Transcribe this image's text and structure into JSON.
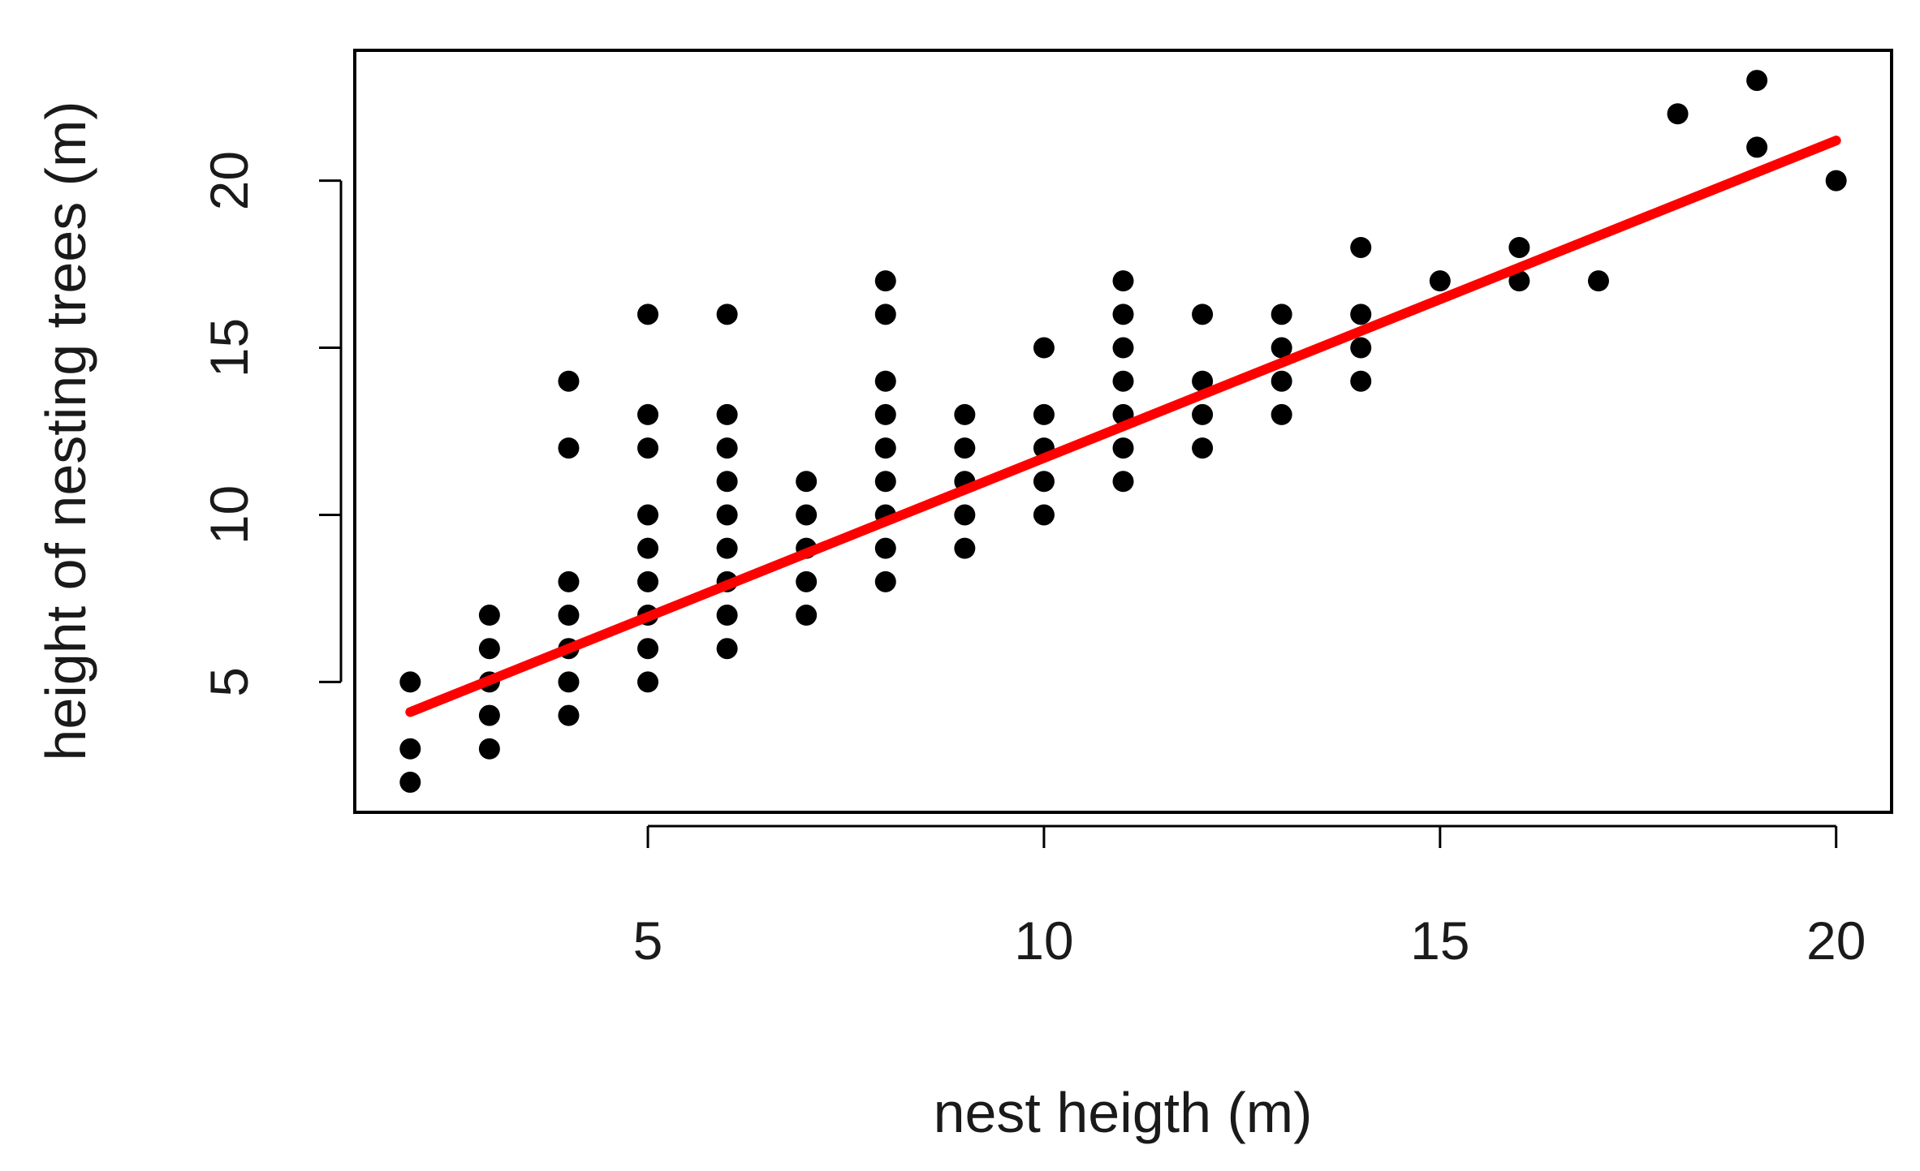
{
  "chart_data": {
    "type": "scatter",
    "title": "",
    "xlabel": "nest heigth (m)",
    "ylabel": "height of nesting trees (m)",
    "xlim": [
      1.3,
      20.7
    ],
    "ylim": [
      1.1,
      23.9
    ],
    "x_ticks": [
      5,
      10,
      15,
      20
    ],
    "y_ticks": [
      5,
      10,
      15,
      20
    ],
    "x_tick_labels": [
      "5",
      "10",
      "15",
      "20"
    ],
    "y_tick_labels": [
      "5",
      "10",
      "15",
      "20"
    ],
    "grid": false,
    "points": [
      [
        2,
        2
      ],
      [
        2,
        3
      ],
      [
        2,
        5
      ],
      [
        3,
        3
      ],
      [
        3,
        4
      ],
      [
        3,
        5
      ],
      [
        3,
        6
      ],
      [
        3,
        7
      ],
      [
        4,
        4
      ],
      [
        4,
        5
      ],
      [
        4,
        6
      ],
      [
        4,
        7
      ],
      [
        4,
        8
      ],
      [
        4,
        12
      ],
      [
        4,
        14
      ],
      [
        5,
        5
      ],
      [
        5,
        6
      ],
      [
        5,
        7
      ],
      [
        5,
        8
      ],
      [
        5,
        9
      ],
      [
        5,
        10
      ],
      [
        5,
        12
      ],
      [
        5,
        13
      ],
      [
        5,
        16
      ],
      [
        6,
        6
      ],
      [
        6,
        7
      ],
      [
        6,
        8
      ],
      [
        6,
        9
      ],
      [
        6,
        10
      ],
      [
        6,
        11
      ],
      [
        6,
        12
      ],
      [
        6,
        13
      ],
      [
        6,
        16
      ],
      [
        7,
        7
      ],
      [
        7,
        8
      ],
      [
        7,
        9
      ],
      [
        7,
        10
      ],
      [
        7,
        11
      ],
      [
        8,
        8
      ],
      [
        8,
        9
      ],
      [
        8,
        10
      ],
      [
        8,
        11
      ],
      [
        8,
        12
      ],
      [
        8,
        13
      ],
      [
        8,
        14
      ],
      [
        8,
        16
      ],
      [
        8,
        17
      ],
      [
        9,
        9
      ],
      [
        9,
        10
      ],
      [
        9,
        11
      ],
      [
        9,
        12
      ],
      [
        9,
        13
      ],
      [
        10,
        10
      ],
      [
        10,
        11
      ],
      [
        10,
        12
      ],
      [
        10,
        13
      ],
      [
        10,
        15
      ],
      [
        11,
        11
      ],
      [
        11,
        12
      ],
      [
        11,
        13
      ],
      [
        11,
        14
      ],
      [
        11,
        15
      ],
      [
        11,
        16
      ],
      [
        11,
        17
      ],
      [
        12,
        12
      ],
      [
        12,
        13
      ],
      [
        12,
        14
      ],
      [
        12,
        16
      ],
      [
        13,
        13
      ],
      [
        13,
        14
      ],
      [
        13,
        15
      ],
      [
        13,
        16
      ],
      [
        14,
        14
      ],
      [
        14,
        15
      ],
      [
        14,
        16
      ],
      [
        14,
        18
      ],
      [
        15,
        17
      ],
      [
        16,
        17
      ],
      [
        16,
        18
      ],
      [
        17,
        17
      ],
      [
        18,
        22
      ],
      [
        19,
        21
      ],
      [
        19,
        23
      ],
      [
        20,
        20
      ]
    ],
    "fit_line": {
      "type": "linear",
      "color": "#ff0000",
      "x": [
        2,
        20
      ],
      "y": [
        4.1,
        21.2
      ]
    },
    "point_color": "#000000"
  }
}
